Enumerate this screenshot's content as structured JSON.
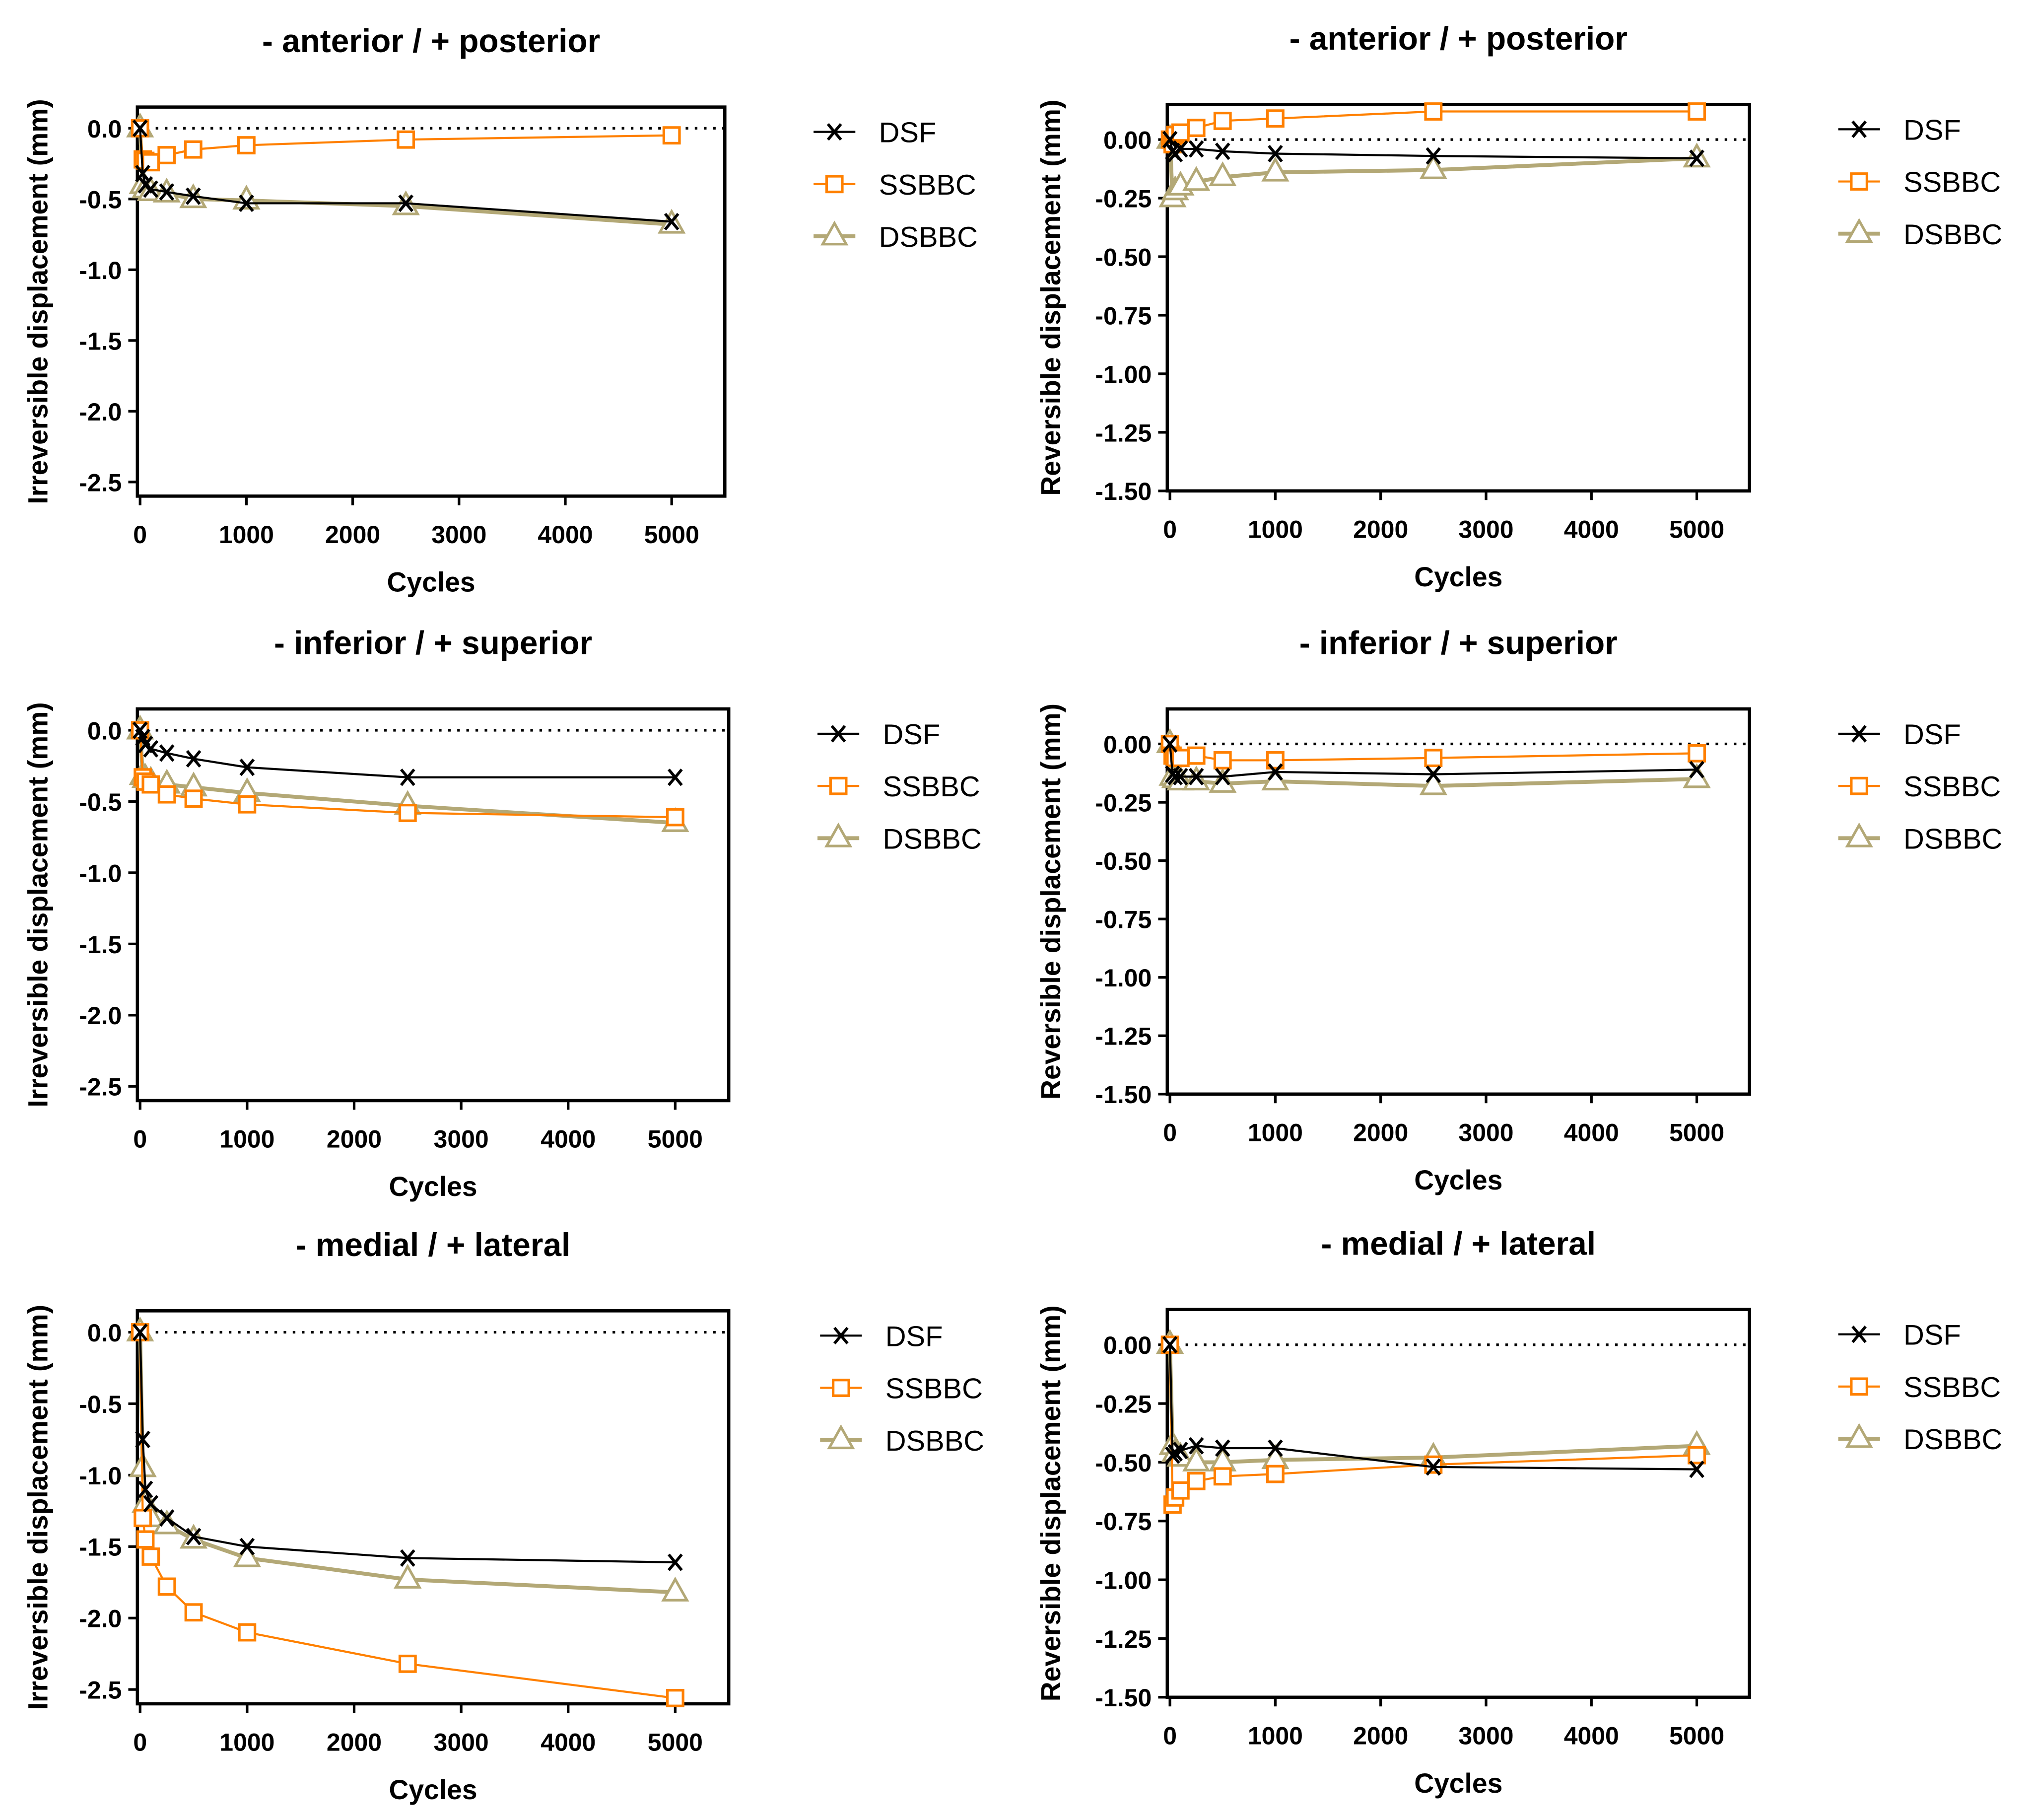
{
  "colors": {
    "DSF": "#000000",
    "SSBBC": "#ff8000",
    "DSBBC": "#b3a876"
  },
  "legend_labels": [
    "DSF",
    "SSBBC",
    "DSBBC"
  ],
  "chart_data": [
    {
      "type": "line",
      "title": "- anterior / + posterior",
      "xlabel": "Cycles",
      "ylabel": "Irreversible displacement (mm)",
      "xlim": [
        -25,
        5500
      ],
      "ylim": [
        -2.6,
        0.15
      ],
      "xticks": [
        0,
        1000,
        2000,
        3000,
        4000,
        5000
      ],
      "yticks": [
        0,
        -0.5,
        -1,
        -1.5,
        -2,
        -2.5
      ],
      "ytick_labels": [
        "0.0",
        "-0.5",
        "-1.0",
        "-1.5",
        "-2.0",
        "-2.5"
      ],
      "legend": "right",
      "reference_line": 0,
      "x": [
        0,
        25,
        50,
        100,
        250,
        500,
        1000,
        2500,
        5000
      ],
      "series": [
        {
          "name": "DSF",
          "marker": "x",
          "values": [
            0,
            -0.32,
            -0.4,
            -0.43,
            -0.45,
            -0.48,
            -0.53,
            -0.53,
            -0.66
          ]
        },
        {
          "name": "SSBBC",
          "marker": "square",
          "values": [
            0,
            -0.22,
            -0.23,
            -0.24,
            -0.19,
            -0.15,
            -0.12,
            -0.08,
            -0.05
          ]
        },
        {
          "name": "DSBBC",
          "marker": "triangle",
          "values": [
            0,
            -0.4,
            -0.43,
            -0.45,
            -0.46,
            -0.5,
            -0.51,
            -0.55,
            -0.68
          ]
        }
      ]
    },
    {
      "type": "line",
      "title": "- anterior / + posterior",
      "xlabel": "Cycles",
      "ylabel": "Reversible displacement (mm)",
      "xlim": [
        -25,
        5500
      ],
      "ylim": [
        -1.5,
        0.15
      ],
      "xticks": [
        0,
        1000,
        2000,
        3000,
        4000,
        5000
      ],
      "yticks": [
        0,
        -0.25,
        -0.5,
        -0.75,
        -1,
        -1.25,
        -1.5
      ],
      "ytick_labels": [
        "0.00",
        "-0.25",
        "-0.50",
        "-0.75",
        "-1.00",
        "-1.25",
        "-1.50"
      ],
      "legend": "right",
      "reference_line": 0,
      "x": [
        0,
        25,
        50,
        100,
        250,
        500,
        1000,
        2500,
        5000
      ],
      "series": [
        {
          "name": "DSF",
          "marker": "x",
          "values": [
            0,
            -0.05,
            -0.06,
            -0.04,
            -0.04,
            -0.05,
            -0.06,
            -0.07,
            -0.08
          ]
        },
        {
          "name": "SSBBC",
          "marker": "square",
          "values": [
            0,
            -0.02,
            0.02,
            0.03,
            0.05,
            0.08,
            0.09,
            0.12,
            0.12
          ]
        },
        {
          "name": "DSBBC",
          "marker": "triangle",
          "values": [
            0,
            -0.25,
            -0.22,
            -0.2,
            -0.18,
            -0.16,
            -0.14,
            -0.13,
            -0.08
          ]
        }
      ]
    },
    {
      "type": "line",
      "title": "- inferior / + superior",
      "xlabel": "Cycles",
      "ylabel": "Irreversible displacement (mm)",
      "xlim": [
        -25,
        5500
      ],
      "ylim": [
        -2.6,
        0.15
      ],
      "xticks": [
        0,
        1000,
        2000,
        3000,
        4000,
        5000
      ],
      "yticks": [
        0,
        -0.5,
        -1,
        -1.5,
        -2,
        -2.5
      ],
      "ytick_labels": [
        "0.0",
        "-0.5",
        "-1.0",
        "-1.5",
        "-2.0",
        "-2.5"
      ],
      "legend": "right",
      "reference_line": 0,
      "x": [
        0,
        25,
        50,
        100,
        250,
        500,
        1000,
        2500,
        5000
      ],
      "series": [
        {
          "name": "DSF",
          "marker": "x",
          "values": [
            0,
            -0.05,
            -0.1,
            -0.13,
            -0.16,
            -0.2,
            -0.26,
            -0.33,
            -0.33
          ]
        },
        {
          "name": "SSBBC",
          "marker": "square",
          "values": [
            0,
            -0.33,
            -0.36,
            -0.38,
            -0.45,
            -0.48,
            -0.52,
            -0.58,
            -0.61
          ]
        },
        {
          "name": "DSBBC",
          "marker": "triangle",
          "values": [
            0,
            -0.32,
            -0.34,
            -0.36,
            -0.38,
            -0.4,
            -0.44,
            -0.53,
            -0.65
          ]
        }
      ]
    },
    {
      "type": "line",
      "title": "- inferior / + superior",
      "xlabel": "Cycles",
      "ylabel": "Reversible displacement (mm)",
      "xlim": [
        -25,
        5500
      ],
      "ylim": [
        -1.5,
        0.15
      ],
      "xticks": [
        0,
        1000,
        2000,
        3000,
        4000,
        5000
      ],
      "yticks": [
        0,
        -0.25,
        -0.5,
        -0.75,
        -1,
        -1.25,
        -1.5
      ],
      "ytick_labels": [
        "0.00",
        "-0.25",
        "-0.50",
        "-0.75",
        "-1.00",
        "-1.25",
        "-1.50"
      ],
      "legend": "right",
      "reference_line": 0,
      "x": [
        0,
        25,
        50,
        100,
        250,
        500,
        1000,
        2500,
        5000
      ],
      "series": [
        {
          "name": "DSF",
          "marker": "x",
          "values": [
            0,
            -0.13,
            -0.14,
            -0.14,
            -0.14,
            -0.14,
            -0.12,
            -0.13,
            -0.11
          ]
        },
        {
          "name": "SSBBC",
          "marker": "square",
          "values": [
            0,
            -0.05,
            -0.06,
            -0.06,
            -0.05,
            -0.07,
            -0.07,
            -0.06,
            -0.04
          ]
        },
        {
          "name": "DSBBC",
          "marker": "triangle",
          "values": [
            0,
            -0.14,
            -0.15,
            -0.16,
            -0.16,
            -0.17,
            -0.16,
            -0.18,
            -0.15
          ]
        }
      ]
    },
    {
      "type": "line",
      "title": "- medial / + lateral",
      "xlabel": "Cycles",
      "ylabel": "Irreversible displacement (mm)",
      "xlim": [
        -25,
        5500
      ],
      "ylim": [
        -2.6,
        0.15
      ],
      "xticks": [
        0,
        1000,
        2000,
        3000,
        4000,
        5000
      ],
      "yticks": [
        0,
        -0.5,
        -1,
        -1.5,
        -2,
        -2.5
      ],
      "ytick_labels": [
        "0.0",
        "-0.5",
        "-1.0",
        "-1.5",
        "-2.0",
        "-2.5"
      ],
      "legend": "right",
      "reference_line": 0,
      "x": [
        0,
        25,
        50,
        100,
        250,
        500,
        1000,
        2500,
        5000
      ],
      "series": [
        {
          "name": "DSF",
          "marker": "x",
          "values": [
            0,
            -0.75,
            -1.1,
            -1.2,
            -1.3,
            -1.43,
            -1.5,
            -1.58,
            -1.61
          ]
        },
        {
          "name": "SSBBC",
          "marker": "square",
          "values": [
            0,
            -1.3,
            -1.45,
            -1.57,
            -1.78,
            -1.96,
            -2.1,
            -2.32,
            -2.56
          ]
        },
        {
          "name": "DSBBC",
          "marker": "triangle",
          "values": [
            0,
            -0.95,
            -1.2,
            -1.3,
            -1.35,
            -1.45,
            -1.58,
            -1.73,
            -1.82
          ]
        }
      ]
    },
    {
      "type": "line",
      "title": "- medial / + lateral",
      "xlabel": "Cycles",
      "ylabel": "Reversible displacement (mm)",
      "xlim": [
        -25,
        5500
      ],
      "ylim": [
        -1.5,
        0.15
      ],
      "xticks": [
        0,
        1000,
        2000,
        3000,
        4000,
        5000
      ],
      "yticks": [
        0,
        -0.25,
        -0.5,
        -0.75,
        -1,
        -1.25,
        -1.5
      ],
      "ytick_labels": [
        "0.00",
        "-0.25",
        "-0.50",
        "-0.75",
        "-1.00",
        "-1.25",
        "-1.50"
      ],
      "legend": "right",
      "reference_line": 0,
      "x": [
        0,
        25,
        50,
        100,
        250,
        500,
        1000,
        2500,
        5000
      ],
      "series": [
        {
          "name": "DSF",
          "marker": "x",
          "values": [
            0,
            -0.47,
            -0.46,
            -0.45,
            -0.43,
            -0.44,
            -0.44,
            -0.52,
            -0.53
          ]
        },
        {
          "name": "SSBBC",
          "marker": "square",
          "values": [
            0,
            -0.68,
            -0.65,
            -0.62,
            -0.58,
            -0.56,
            -0.55,
            -0.51,
            -0.47
          ]
        },
        {
          "name": "DSBBC",
          "marker": "triangle",
          "values": [
            0,
            -0.43,
            -0.46,
            -0.48,
            -0.5,
            -0.5,
            -0.49,
            -0.48,
            -0.43
          ]
        }
      ]
    }
  ]
}
